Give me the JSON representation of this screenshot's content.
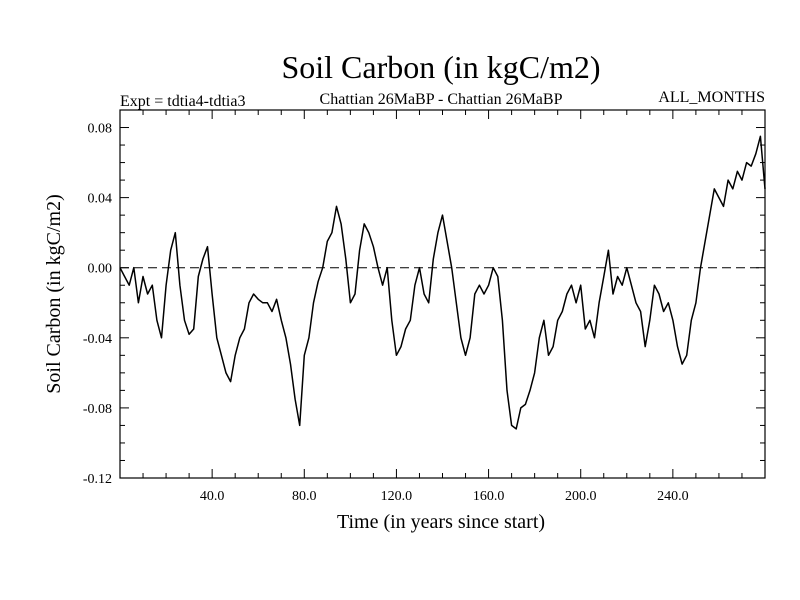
{
  "chart_data": {
    "type": "line",
    "title": "Soil Carbon (in kgC/m2)",
    "subtitle_left": "Expt = tdtia4-tdtia3",
    "subtitle_center": "Chattian  26MaBP - Chattian  26MaBP",
    "subtitle_right": "ALL_MONTHS",
    "xlabel": "Time (in years since start)",
    "ylabel": "Soil Carbon (in kgC/m2)",
    "xlim": [
      0,
      280
    ],
    "ylim": [
      -0.12,
      0.09
    ],
    "x_ticks": [
      40,
      80,
      120,
      160,
      200,
      240
    ],
    "x_tick_labels": [
      "40.0",
      "80.0",
      "120.0",
      "160.0",
      "200.0",
      "240.0"
    ],
    "y_ticks": [
      0.08,
      0.04,
      0.0,
      -0.04,
      -0.08,
      -0.12
    ],
    "y_tick_labels": [
      "0.08",
      "0.04",
      "0.00",
      "-0.04",
      "-0.08",
      "-0.12"
    ],
    "reference_line": 0.0,
    "reference_line_style": "dashed",
    "series": [
      {
        "name": "Soil Carbon",
        "x": [
          0,
          2,
          4,
          6,
          8,
          10,
          12,
          14,
          16,
          18,
          20,
          22,
          24,
          26,
          28,
          30,
          32,
          34,
          36,
          38,
          40,
          42,
          44,
          46,
          48,
          50,
          52,
          54,
          56,
          58,
          60,
          62,
          64,
          66,
          68,
          70,
          72,
          74,
          76,
          78,
          80,
          82,
          84,
          86,
          88,
          90,
          92,
          94,
          96,
          98,
          100,
          102,
          104,
          106,
          108,
          110,
          112,
          114,
          116,
          118,
          120,
          122,
          124,
          126,
          128,
          130,
          132,
          134,
          136,
          138,
          140,
          142,
          144,
          146,
          148,
          150,
          152,
          154,
          156,
          158,
          160,
          162,
          164,
          166,
          168,
          170,
          172,
          174,
          176,
          178,
          180,
          182,
          184,
          186,
          188,
          190,
          192,
          194,
          196,
          198,
          200,
          202,
          204,
          206,
          208,
          210,
          212,
          214,
          216,
          218,
          220,
          222,
          224,
          226,
          228,
          230,
          232,
          234,
          236,
          238,
          240,
          242,
          244,
          246,
          248,
          250,
          252,
          254,
          256,
          258,
          260,
          262,
          264,
          266,
          268,
          270,
          272,
          274,
          276,
          278,
          280
        ],
        "values": [
          0.0,
          -0.005,
          -0.01,
          0.0,
          -0.02,
          -0.005,
          -0.015,
          -0.01,
          -0.03,
          -0.04,
          -0.01,
          0.01,
          0.02,
          -0.01,
          -0.03,
          -0.038,
          -0.035,
          -0.005,
          0.005,
          0.012,
          -0.015,
          -0.04,
          -0.05,
          -0.06,
          -0.065,
          -0.05,
          -0.04,
          -0.035,
          -0.02,
          -0.015,
          -0.018,
          -0.02,
          -0.02,
          -0.025,
          -0.018,
          -0.03,
          -0.04,
          -0.055,
          -0.075,
          -0.09,
          -0.05,
          -0.04,
          -0.02,
          -0.008,
          0.0,
          0.015,
          0.02,
          0.035,
          0.025,
          0.005,
          -0.02,
          -0.015,
          0.01,
          0.025,
          0.02,
          0.012,
          0.0,
          -0.01,
          0.0,
          -0.03,
          -0.05,
          -0.045,
          -0.035,
          -0.03,
          -0.01,
          0.0,
          -0.015,
          -0.02,
          0.005,
          0.02,
          0.03,
          0.015,
          0.0,
          -0.02,
          -0.04,
          -0.05,
          -0.04,
          -0.015,
          -0.01,
          -0.015,
          -0.01,
          0.0,
          -0.005,
          -0.03,
          -0.07,
          -0.09,
          -0.092,
          -0.08,
          -0.078,
          -0.07,
          -0.06,
          -0.04,
          -0.03,
          -0.05,
          -0.045,
          -0.03,
          -0.025,
          -0.015,
          -0.01,
          -0.02,
          -0.01,
          -0.035,
          -0.03,
          -0.04,
          -0.02,
          -0.005,
          0.01,
          -0.015,
          -0.005,
          -0.01,
          0.0,
          -0.01,
          -0.02,
          -0.025,
          -0.045,
          -0.03,
          -0.01,
          -0.015,
          -0.025,
          -0.02,
          -0.03,
          -0.045,
          -0.055,
          -0.05,
          -0.03,
          -0.02,
          0.0,
          0.015,
          0.03,
          0.045,
          0.04,
          0.035,
          0.05,
          0.045,
          0.055,
          0.05,
          0.06,
          0.058,
          0.065,
          0.075,
          0.045
        ]
      }
    ]
  }
}
